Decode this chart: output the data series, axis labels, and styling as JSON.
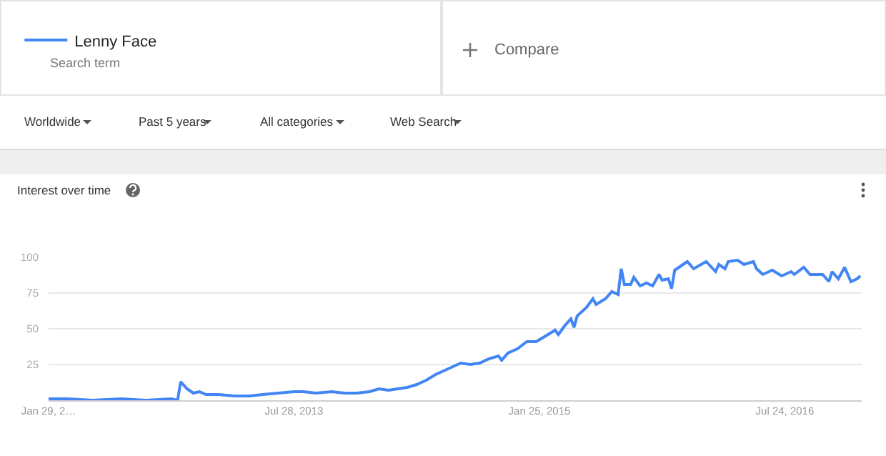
{
  "chart_data": {
    "type": "line",
    "title": "Interest over time",
    "annotations": [
      "Search term",
      "Compare",
      "Worldwide",
      "Past 5 years",
      "All categories",
      "Web Search"
    ],
    "series": [
      {
        "name": "Lenny Face",
        "color": "#4285f4",
        "x": [
          "2012-01-29",
          "2012-03-11",
          "2012-05-06",
          "2012-07-08",
          "2012-09-02",
          "2012-10-28",
          "2012-11-11",
          "2012-11-18",
          "2012-12-02",
          "2012-12-16",
          "2012-12-30",
          "2013-01-13",
          "2013-02-10",
          "2013-03-17",
          "2013-04-21",
          "2013-05-19",
          "2013-06-23",
          "2013-07-28",
          "2013-08-18",
          "2013-09-15",
          "2013-10-20",
          "2013-11-17",
          "2013-12-15",
          "2014-01-12",
          "2014-02-02",
          "2014-02-23",
          "2014-03-16",
          "2014-04-06",
          "2014-04-27",
          "2014-05-18",
          "2014-06-08",
          "2014-06-29",
          "2014-07-20",
          "2014-08-03",
          "2014-08-24",
          "2014-09-14",
          "2014-10-05",
          "2014-10-26",
          "2014-11-02",
          "2014-11-16",
          "2014-12-07",
          "2014-12-28",
          "2015-01-18",
          "2015-02-08",
          "2015-03-01",
          "2015-03-08",
          "2015-03-22",
          "2015-04-05",
          "2015-04-12",
          "2015-04-19",
          "2015-05-10",
          "2015-05-24",
          "2015-05-31",
          "2015-06-21",
          "2015-07-05",
          "2015-07-19",
          "2015-07-26",
          "2015-08-02",
          "2015-08-16",
          "2015-08-23",
          "2015-09-06",
          "2015-09-20",
          "2015-10-04",
          "2015-10-18",
          "2015-10-25",
          "2015-11-08",
          "2015-11-15",
          "2015-11-22",
          "2015-12-20",
          "2016-01-03",
          "2016-01-31",
          "2016-02-21",
          "2016-02-28",
          "2016-03-13",
          "2016-03-20",
          "2016-04-10",
          "2016-04-24",
          "2016-05-15",
          "2016-05-22",
          "2016-06-05",
          "2016-06-26",
          "2016-07-17",
          "2016-08-07",
          "2016-08-14",
          "2016-09-04",
          "2016-09-18",
          "2016-10-02",
          "2016-10-16",
          "2016-10-30",
          "2016-11-06",
          "2016-11-20",
          "2016-12-04",
          "2016-12-18",
          "2017-01-01",
          "2017-01-08"
        ],
        "values": [
          1,
          1,
          0,
          1,
          0,
          1,
          0,
          13,
          8,
          5,
          6,
          4,
          4,
          3,
          3,
          4,
          5,
          6,
          6,
          5,
          6,
          5,
          5,
          6,
          8,
          7,
          8,
          9,
          11,
          14,
          18,
          21,
          24,
          26,
          25,
          26,
          29,
          31,
          28,
          33,
          36,
          41,
          41,
          45,
          49,
          46,
          52,
          57,
          51,
          59,
          65,
          71,
          67,
          71,
          76,
          74,
          92,
          81,
          81,
          86,
          80,
          82,
          80,
          88,
          84,
          85,
          78,
          91,
          97,
          92,
          97,
          90,
          95,
          92,
          97,
          98,
          95,
          97,
          92,
          88,
          91,
          87,
          90,
          88,
          93,
          88,
          88,
          88,
          83,
          90,
          85,
          93,
          83,
          85,
          87
        ]
      }
    ],
    "xlim": [
      "2012-01-29",
      "2017-01-11"
    ],
    "xticks": [
      {
        "value": "2012-01-29",
        "label": "Jan 29, 2…"
      },
      {
        "value": "2013-07-28",
        "label": "Jul 28, 2013"
      },
      {
        "value": "2015-01-25",
        "label": "Jan 25, 2015"
      },
      {
        "value": "2016-07-24",
        "label": "Jul 24, 2016"
      }
    ],
    "ylim": [
      0,
      100
    ],
    "yticks": [
      {
        "value": 0,
        "label": null
      },
      25,
      50,
      75,
      100
    ],
    "grid": "y",
    "legend": "top left",
    "line_style": "solid"
  }
}
